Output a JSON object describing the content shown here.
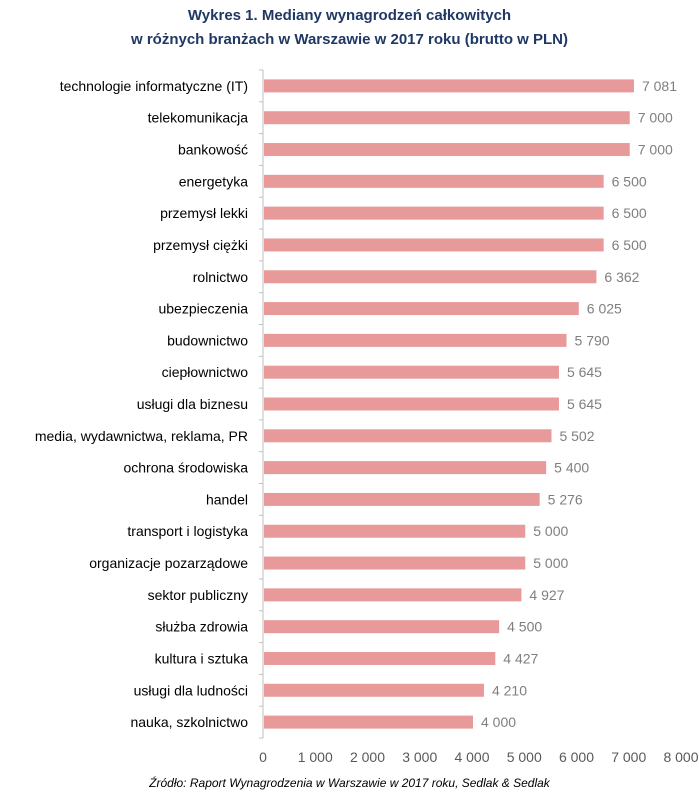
{
  "chart_data": {
    "type": "bar",
    "orientation": "horizontal",
    "title_line1": "Wykres 1. Mediany wynagrodzeń całkowitych",
    "title_line2": "w różnych branżach w Warszawie w 2017 roku (brutto w PLN)",
    "categories": [
      "technologie informatyczne (IT)",
      "telekomunikacja",
      "bankowość",
      "energetyka",
      "przemysł lekki",
      "przemysł ciężki",
      "rolnictwo",
      "ubezpieczenia",
      "budownictwo",
      "ciepłownictwo",
      "usługi dla biznesu",
      "media, wydawnictwa, reklama, PR",
      "ochrona środowiska",
      "handel",
      "transport i logistyka",
      "organizacje pozarządowe",
      "sektor publiczny",
      "służba zdrowia",
      "kultura i sztuka",
      "usługi dla ludności",
      "nauka, szkolnictwo"
    ],
    "values": [
      7081,
      7000,
      7000,
      6500,
      6500,
      6500,
      6362,
      6025,
      5790,
      5645,
      5645,
      5502,
      5400,
      5276,
      5000,
      5000,
      4927,
      4500,
      4427,
      4210,
      4000
    ],
    "value_labels": [
      "7 081",
      "7 000",
      "7 000",
      "6 500",
      "6 500",
      "6 500",
      "6 362",
      "6 025",
      "5 790",
      "5 645",
      "5 645",
      "5 502",
      "5 400",
      "5 276",
      "5 000",
      "5 000",
      "4 927",
      "4 500",
      "4 427",
      "4 210",
      "4 000"
    ],
    "xlim": [
      0,
      8000
    ],
    "x_ticks": [
      0,
      1000,
      2000,
      3000,
      4000,
      5000,
      6000,
      7000,
      8000
    ],
    "x_tick_labels": [
      "0",
      "1 000",
      "2 000",
      "3 000",
      "4 000",
      "5 000",
      "6 000",
      "7 000",
      "8 000"
    ],
    "grid": false,
    "bar_color": "#e89a9a",
    "value_label_color": "#7f7f7f"
  },
  "source_note": "Źródło: Raport Wynagrodzenia w Warszawie w 2017 roku, Sedlak & Sedlak",
  "colors": {
    "title": "#1f3864",
    "axis": "#bfbfbf"
  }
}
